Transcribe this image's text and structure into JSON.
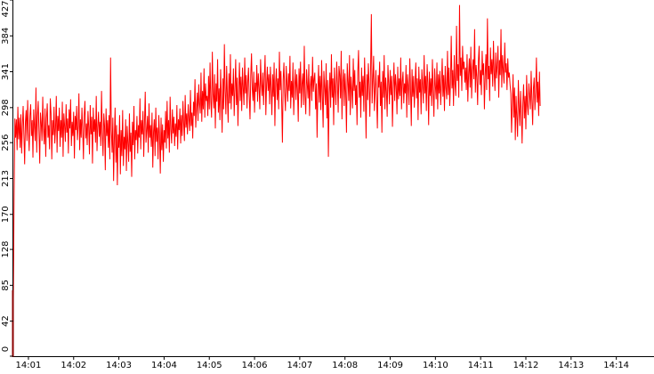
{
  "chart_data": {
    "type": "line",
    "title": "",
    "xlabel": "",
    "ylabel": "",
    "ylim": [
      0,
      427
    ],
    "y_ticks": [
      0,
      42,
      85,
      128,
      170,
      213,
      256,
      298,
      341,
      384,
      427
    ],
    "x_ticks": [
      "14:01",
      "14:02",
      "14:03",
      "14:04",
      "14:05",
      "14:06",
      "14:07",
      "14:08",
      "14:09",
      "14:10",
      "14:11",
      "14:12",
      "14:13",
      "14:14"
    ],
    "x_range": [
      "14:00:40",
      "14:14:50"
    ],
    "grid": false,
    "legend": "none",
    "colors": {
      "line": "#ff0000",
      "axis": "#000000",
      "start_marker": "#8b0000",
      "background": "#ffffff"
    },
    "series": [
      {
        "time_start": "14:00:40",
        "time_step_seconds": 1,
        "note_on_values": "one sample per second",
        "values": [
          70,
          190,
          285,
          262,
          284,
          247,
          299,
          260,
          286,
          250,
          290,
          243,
          276,
          300,
          265,
          230,
          281,
          295,
          258,
          307,
          271,
          246,
          289,
          302,
          264,
          283,
          238,
          296,
          275,
          258,
          322,
          244,
          288,
          306,
          269,
          231,
          292,
          280,
          258,
          311,
          272,
          254,
          297,
          239,
          286,
          303,
          262,
          277,
          248,
          309,
          291,
          236,
          283,
          265,
          299,
          255,
          274,
          312,
          244,
          288,
          270,
          298,
          251,
          283,
          262,
          305,
          239,
          291,
          276,
          257,
          302,
          268,
          285,
          243,
          296,
          273,
          308,
          252,
          281,
          264,
          293,
          237,
          288,
          271,
          300,
          259,
          276,
          315,
          247,
          284,
          262,
          298,
          272,
          236,
          289,
          306,
          261,
          279,
          253,
          294,
          274,
          242,
          301,
          266,
          287,
          231,
          298,
          269,
          284,
          256,
          312,
          246,
          275,
          293,
          263,
          281,
          252,
          318,
          268,
          240,
          291,
          276,
          223,
          297,
          264,
          283,
          250,
          289,
          236,
          358,
          271,
          244,
          286,
          210,
          262,
          298,
          232,
          277,
          205,
          266,
          250,
          289,
          218,
          271,
          240,
          295,
          228,
          263,
          248,
          284,
          222,
          276,
          256,
          233,
          291,
          245,
          268,
          215,
          281,
          253,
          300,
          236,
          271,
          259,
          288,
          243,
          277,
          262,
          309,
          248,
          283,
          266,
          294,
          239,
          279,
          317,
          256,
          271,
          288,
          244,
          303,
          262,
          277,
          251,
          292,
          226,
          269,
          284,
          240,
          298,
          257,
          274,
          236,
          289,
          264,
          219,
          286,
          247,
          278,
          233,
          271,
          256,
          294,
          249,
          306,
          261,
          283,
          244,
          311,
          272,
          255,
          296,
          267,
          287,
          252,
          279,
          263,
          301,
          248,
          284,
          271,
          297,
          255,
          289,
          264,
          306,
          280,
          258,
          313,
          274,
          291,
          266,
          302,
          285,
          270,
          319,
          276,
          292,
          261,
          305,
          288,
          332,
          274,
          298,
          316,
          282,
          326,
          303,
          291,
          340,
          281,
          318,
          296,
          345,
          286,
          327,
          306,
          312,
          288,
          336,
          296,
          352,
          305,
          286,
          365,
          314,
          297,
          338,
          273,
          327,
          305,
          356,
          292,
          321,
          283,
          344,
          309,
          268,
          333,
          296,
          374,
          318,
          290,
          348,
          311,
          280,
          339,
          303,
          362,
          296,
          327,
          312,
          345,
          288,
          320,
          356,
          301,
          334,
          276,
          319,
          352,
          306,
          335,
          294,
          346,
          322,
          301,
          358,
          315,
          337,
          297,
          329,
          346,
          311,
          284,
          337,
          363,
          320,
          306,
          341,
          292,
          328,
          317,
          349,
          305,
          339,
          322,
          296,
          356,
          327,
          312,
          340,
          301,
          334,
          361,
          289,
          326,
          347,
          318,
          338,
          302,
          347,
          322,
          289,
          338,
          311,
          352,
          276,
          328,
          345,
          307,
          333,
          296,
          365,
          319,
          342,
          305,
          256,
          331,
          352,
          316,
          294,
          348,
          327,
          305,
          339,
          318,
          360,
          297,
          330,
          310,
          352,
          289,
          324,
          344,
          307,
          338,
          320,
          281,
          345,
          315,
          353,
          298,
          326,
          339,
          301,
          372,
          312,
          290,
          344,
          326,
          309,
          350,
          288,
          324,
          336,
          306,
          359,
          317,
          332,
          340,
          296,
          327,
          262,
          318,
          349,
          304,
          336,
          295,
          355,
          313,
          274,
          342,
          322,
          301,
          351,
          285,
          331,
          239,
          316,
          340,
          298,
          362,
          310,
          333,
          277,
          346,
          319,
          301,
          353,
          326,
          292,
          348,
          337,
          309,
          366,
          284,
          328,
          344,
          300,
          339,
          316,
          268,
          351,
          330,
          306,
          361,
          289,
          335,
          320,
          297,
          357,
          318,
          343,
          301,
          325,
          277,
          341,
          367,
          310,
          329,
          286,
          346,
          312,
          336,
          293,
          358,
          318,
          261,
          338,
          307,
          351,
          326,
          287,
          346,
          410,
          303,
          331,
          360,
          294,
          318,
          343,
          309,
          273,
          337,
          322,
          353,
          300,
          329,
          268,
          342,
          310,
          361,
          296,
          334,
          318,
          287,
          349,
          327,
          302,
          343,
          313,
          336,
          275,
          321,
          352,
          306,
          338,
          324,
          290,
          347,
          308,
          333,
          312,
          358,
          296,
          329,
          341,
          303,
          327,
          315,
          349,
          286,
          338,
          324,
          301,
          357,
          320,
          276,
          344,
          311,
          336,
          298,
          327,
          352,
          309,
          333,
          283,
          347,
          316,
          332,
          290,
          344,
          325,
          303,
          361,
          315,
          336,
          294,
          350,
          328,
          277,
          341,
          312,
          333,
          300,
          356,
          319,
          287,
          345,
          324,
          308,
          352,
          296,
          338,
          315,
          342,
          301,
          326,
          357,
          311,
          337,
          294,
          348,
          322,
          308,
          366,
          313,
          346,
          300,
          328,
          384,
          321,
          343,
          300,
          361,
          326,
          312,
          396,
          330,
          350,
          310,
          421,
          336,
          358,
          318,
          372,
          344,
          353,
          328,
          346,
          319,
          362,
          305,
          338,
          357,
          322,
          371,
          309,
          343,
          356,
          332,
          392,
          316,
          349,
          335,
          301,
          354,
          372,
          325,
          343,
          313,
          366,
          337,
          351,
          296,
          336,
          362,
          319,
          405,
          332,
          348,
          306,
          370,
          338,
          356,
          323,
          378,
          340,
          318,
          364,
          333,
          349,
          372,
          310,
          355,
          337,
          392,
          322,
          361,
          343,
          327,
          376,
          340,
          351,
          319,
          357,
          334,
          340,
          326,
          315,
          268,
          301,
          338,
          286,
          322,
          259,
          312,
          287,
          263,
          331,
          298,
          276,
          318,
          292,
          255,
          304,
          326,
          285,
          312,
          272,
          337,
          301,
          289,
          327,
          313,
          296,
          342,
          308,
          277,
          321,
          334,
          295,
          317,
          358,
          304,
          329,
          288,
          341,
          300
        ]
      }
    ]
  }
}
